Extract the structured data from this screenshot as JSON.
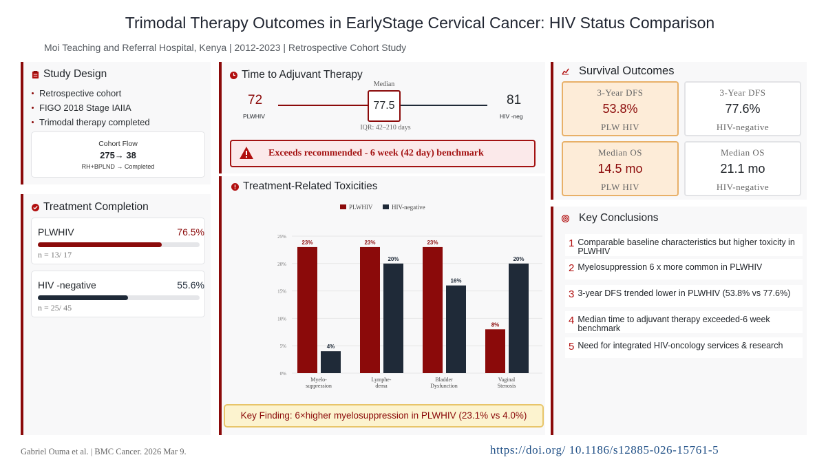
{
  "header": {
    "title": "Trimodal Therapy Outcomes in EarlyStage Cervical Cancer: HIV Status Comparison",
    "subtitle": "Moi Teaching and Referral Hospital, Kenya | 2012-2023 | Retrospective Cohort Study"
  },
  "study_design": {
    "title": "Study Design",
    "bullets": [
      "Retrospective cohort",
      "FIGO 2018 Stage IAIIA",
      "Trimodal therapy completed"
    ],
    "cohort_flow": {
      "label": "Cohort Flow",
      "value": "275→ 38",
      "detail": "RH+BPLND → Completed"
    }
  },
  "treatment_completion": {
    "title": "Treatment Completion",
    "groups": [
      {
        "name": "PLWHIV",
        "percent_label": "76.5%",
        "fraction": 0.765,
        "n": "n = 13/ 17",
        "color": "#8b0a0a"
      },
      {
        "name": "HIV -negative",
        "percent_label": "55.6%",
        "fraction": 0.556,
        "n": "n = 25/ 45",
        "color": "#1f2a38"
      }
    ]
  },
  "time_to_therapy": {
    "title": "Time to Adjuvant Therapy",
    "left_value": "72",
    "left_label": "PLWHIV",
    "median_label": "Median",
    "median_value": "77.5",
    "iqr": "IQR: 42–210 days",
    "right_value": "81",
    "right_label": "HIV -neg",
    "warning": "Exceeds recommended - 6 week (42 day) benchmark"
  },
  "toxicities": {
    "title": "Treatment-Related Toxicities",
    "key_finding": "Key Finding: 6×higher myelosuppression in PLWHIV (23.1% vs 4.0%)"
  },
  "chart_data": {
    "type": "bar",
    "categories": [
      [
        "Myelo-",
        "suppression"
      ],
      [
        "Lymphe-",
        "dema"
      ],
      [
        "Bladder",
        "Dysfunction"
      ],
      [
        "Vaginal",
        "Stenosis"
      ]
    ],
    "series": [
      {
        "name": "PLWHIV",
        "color": "#8b0a0a",
        "values": [
          23,
          23,
          23,
          8
        ],
        "labels": [
          "23%",
          "23%",
          "23%",
          "8%"
        ]
      },
      {
        "name": "HIV-negative",
        "color": "#1f2a38",
        "values": [
          4,
          20,
          16,
          20
        ],
        "labels": [
          "4%",
          "20%",
          "16%",
          "20%"
        ]
      }
    ],
    "ylim": [
      0,
      25
    ],
    "yticks": [
      0,
      5,
      10,
      15,
      20,
      25
    ],
    "ytick_labels": [
      "0%",
      "5%",
      "10%",
      "15%",
      "20%",
      "25%"
    ],
    "grid": true,
    "legend_position": "top-center"
  },
  "survival": {
    "title": "Survival Outcomes",
    "cards": [
      {
        "label": "3-Year DFS",
        "value": "53.8%",
        "group": "PLW HIV",
        "highlight": true
      },
      {
        "label": "3-Year DFS",
        "value": "77.6%",
        "group": "HIV-negative",
        "highlight": false
      },
      {
        "label": "Median OS",
        "value": "14.5 mo",
        "group": "PLW HIV",
        "highlight": true
      },
      {
        "label": "Median OS",
        "value": "21.1 mo",
        "group": "HIV-negative",
        "highlight": false
      }
    ]
  },
  "conclusions": {
    "title": "Key Conclusions",
    "items": [
      {
        "num": "1",
        "text": "Comparable baseline characteristics but higher toxicity in PLWHIV"
      },
      {
        "num": "2",
        "text": "Myelosuppression 6 x  more common in PLWHIV"
      },
      {
        "num": "3",
        "text": "3-year DFS trended lower in PLWHIV (53.8% vs 77.6%)"
      },
      {
        "num": "4",
        "text": "Median time to adjuvant therapy exceeded-6 week benchmark"
      },
      {
        "num": "5",
        "text": "Need for integrated HIV-oncology services & research"
      }
    ]
  },
  "footer": {
    "citation": "Gabriel Ouma et al. | BMC Cancer. 2026 Mar 9.",
    "doi": "https://doi.org/ 10.1186/s12885-026-15761-5"
  }
}
